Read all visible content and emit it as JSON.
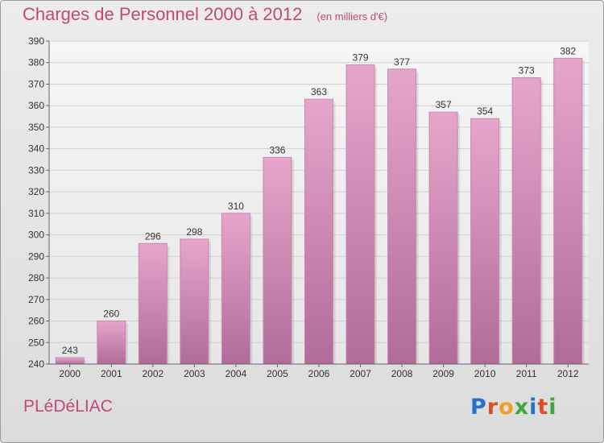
{
  "header": {
    "title": "Charges de Personnel 2000 à 2012",
    "subtitle": "(en milliers d'€)"
  },
  "footer": {
    "commune": "PLéDéLIAC",
    "logo_text": "Proxiti",
    "logo_colors": [
      "#2a6fc9",
      "#e04a2a",
      "#f0a020",
      "#3aa83a",
      "#2a6fc9",
      "#e04a2a",
      "#3aa83a"
    ]
  },
  "colors": {
    "bar_top": "#e6a6cb",
    "bar_bottom": "#b16b99",
    "grid": "#d0d0d0",
    "text": "#333333",
    "accent": "#c2487a"
  },
  "chart_data": {
    "type": "bar",
    "title": "Charges de Personnel 2000 à 2012",
    "subtitle": "(en milliers d'€)",
    "xlabel": "",
    "ylabel": "",
    "categories": [
      "2000",
      "2001",
      "2002",
      "2003",
      "2004",
      "2005",
      "2006",
      "2007",
      "2008",
      "2009",
      "2010",
      "2011",
      "2012"
    ],
    "values": [
      243,
      260,
      296,
      298,
      310,
      336,
      363,
      379,
      377,
      357,
      354,
      373,
      382
    ],
    "ylim": [
      240,
      390
    ],
    "yticks": [
      240,
      250,
      260,
      270,
      280,
      290,
      300,
      310,
      320,
      330,
      340,
      350,
      360,
      370,
      380,
      390
    ],
    "grid": true,
    "data_labels": true
  }
}
